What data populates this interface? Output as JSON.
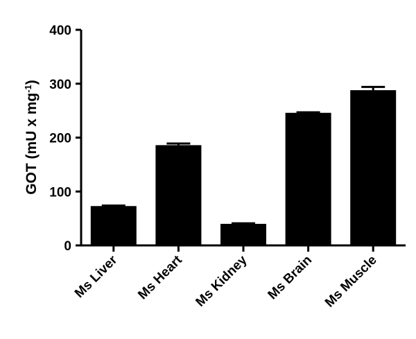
{
  "chart_data": {
    "type": "bar",
    "categories": [
      "Ms Liver",
      "Ms Heart",
      "Ms Kidney",
      "Ms Brain",
      "Ms Muscle"
    ],
    "values": [
      73,
      186,
      40,
      246,
      288
    ],
    "error": [
      1,
      3,
      1,
      1,
      6
    ],
    "ylabel": {
      "prefix": "GOT (mU x mg",
      "superscript": "-1",
      "suffix": ")"
    },
    "ylim": [
      0,
      400
    ],
    "yticks": [
      "0",
      "100",
      "200",
      "300",
      "400"
    ],
    "bar_color": "#000000",
    "grid": false
  }
}
